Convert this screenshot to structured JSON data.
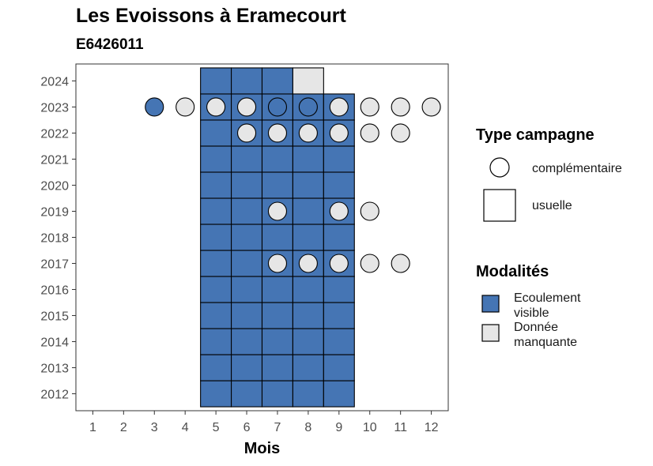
{
  "title": "Les Evoissons à Eramecourt",
  "subtitle": "E6426011",
  "legend": {
    "type_title": "Type campagne",
    "type_items": [
      "complémentaire",
      "usuelle"
    ],
    "mod_title": "Modalités",
    "mod_items": [
      {
        "label": "Ecoulement visible",
        "color": "#4575b4"
      },
      {
        "label": "Donnée manquante",
        "color": "#e6e6e6"
      }
    ]
  },
  "chart_data": {
    "type": "heatmap",
    "xlabel": "Mois",
    "ylabel": "",
    "x_ticks": [
      1,
      2,
      3,
      4,
      5,
      6,
      7,
      8,
      9,
      10,
      11,
      12
    ],
    "y_ticks": [
      2012,
      2013,
      2014,
      2015,
      2016,
      2017,
      2018,
      2019,
      2020,
      2021,
      2022,
      2023,
      2024
    ],
    "colors": {
      "Ecoulement visible": "#4575b4",
      "Donnée manquante": "#e6e6e6"
    },
    "usuelle": [
      {
        "year": 2012,
        "months": [
          5,
          6,
          7,
          8,
          9
        ],
        "modalite": "Ecoulement visible"
      },
      {
        "year": 2013,
        "months": [
          5,
          6,
          7,
          8,
          9
        ],
        "modalite": "Ecoulement visible"
      },
      {
        "year": 2014,
        "months": [
          5,
          6,
          7,
          8,
          9
        ],
        "modalite": "Ecoulement visible"
      },
      {
        "year": 2015,
        "months": [
          5,
          6,
          7,
          8,
          9
        ],
        "modalite": "Ecoulement visible"
      },
      {
        "year": 2016,
        "months": [
          5,
          6,
          7,
          8,
          9
        ],
        "modalite": "Ecoulement visible"
      },
      {
        "year": 2017,
        "months": [
          5,
          6,
          7,
          8,
          9
        ],
        "modalite": "Ecoulement visible"
      },
      {
        "year": 2018,
        "months": [
          5,
          6,
          7,
          8,
          9
        ],
        "modalite": "Ecoulement visible"
      },
      {
        "year": 2019,
        "months": [
          5,
          6,
          7,
          8,
          9
        ],
        "modalite": "Ecoulement visible"
      },
      {
        "year": 2020,
        "months": [
          5,
          6,
          7,
          8,
          9
        ],
        "modalite": "Ecoulement visible"
      },
      {
        "year": 2021,
        "months": [
          5,
          6,
          7,
          8,
          9
        ],
        "modalite": "Ecoulement visible"
      },
      {
        "year": 2022,
        "months": [
          5,
          6,
          7,
          8,
          9
        ],
        "modalite": "Ecoulement visible"
      },
      {
        "year": 2023,
        "months": [
          5,
          6,
          7,
          8,
          9
        ],
        "modalite": "Ecoulement visible"
      },
      {
        "year": 2024,
        "months": [
          5,
          6,
          7
        ],
        "modalite": "Ecoulement visible"
      },
      {
        "year": 2024,
        "months": [
          8
        ],
        "modalite": "Donnée manquante"
      }
    ],
    "complementaire": [
      {
        "year": 2023,
        "month": 3,
        "modalite": "Ecoulement visible"
      },
      {
        "year": 2023,
        "month": 4,
        "modalite": "Donnée manquante"
      },
      {
        "year": 2023,
        "month": 5,
        "modalite": "Donnée manquante"
      },
      {
        "year": 2023,
        "month": 6,
        "modalite": "Donnée manquante"
      },
      {
        "year": 2023,
        "month": 7,
        "modalite": "Ecoulement visible"
      },
      {
        "year": 2023,
        "month": 8,
        "modalite": "Ecoulement visible"
      },
      {
        "year": 2023,
        "month": 9,
        "modalite": "Donnée manquante"
      },
      {
        "year": 2023,
        "month": 10,
        "modalite": "Donnée manquante"
      },
      {
        "year": 2023,
        "month": 11,
        "modalite": "Donnée manquante"
      },
      {
        "year": 2023,
        "month": 12,
        "modalite": "Donnée manquante"
      },
      {
        "year": 2022,
        "month": 6,
        "modalite": "Donnée manquante"
      },
      {
        "year": 2022,
        "month": 7,
        "modalite": "Donnée manquante"
      },
      {
        "year": 2022,
        "month": 8,
        "modalite": "Donnée manquante"
      },
      {
        "year": 2022,
        "month": 9,
        "modalite": "Donnée manquante"
      },
      {
        "year": 2022,
        "month": 10,
        "modalite": "Donnée manquante"
      },
      {
        "year": 2022,
        "month": 11,
        "modalite": "Donnée manquante"
      },
      {
        "year": 2019,
        "month": 7,
        "modalite": "Donnée manquante"
      },
      {
        "year": 2019,
        "month": 9,
        "modalite": "Donnée manquante"
      },
      {
        "year": 2019,
        "month": 10,
        "modalite": "Donnée manquante"
      },
      {
        "year": 2017,
        "month": 7,
        "modalite": "Donnée manquante"
      },
      {
        "year": 2017,
        "month": 8,
        "modalite": "Donnée manquante"
      },
      {
        "year": 2017,
        "month": 9,
        "modalite": "Donnée manquante"
      },
      {
        "year": 2017,
        "month": 10,
        "modalite": "Donnée manquante"
      },
      {
        "year": 2017,
        "month": 11,
        "modalite": "Donnée manquante"
      }
    ]
  }
}
